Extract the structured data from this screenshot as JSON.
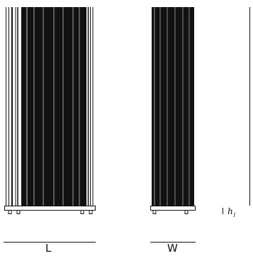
{
  "labels": {
    "length": "L",
    "width": "W",
    "height_symbol": "h",
    "height_subscript": "1"
  },
  "colors": {
    "ink": "#111111",
    "background": "#ffffff"
  }
}
